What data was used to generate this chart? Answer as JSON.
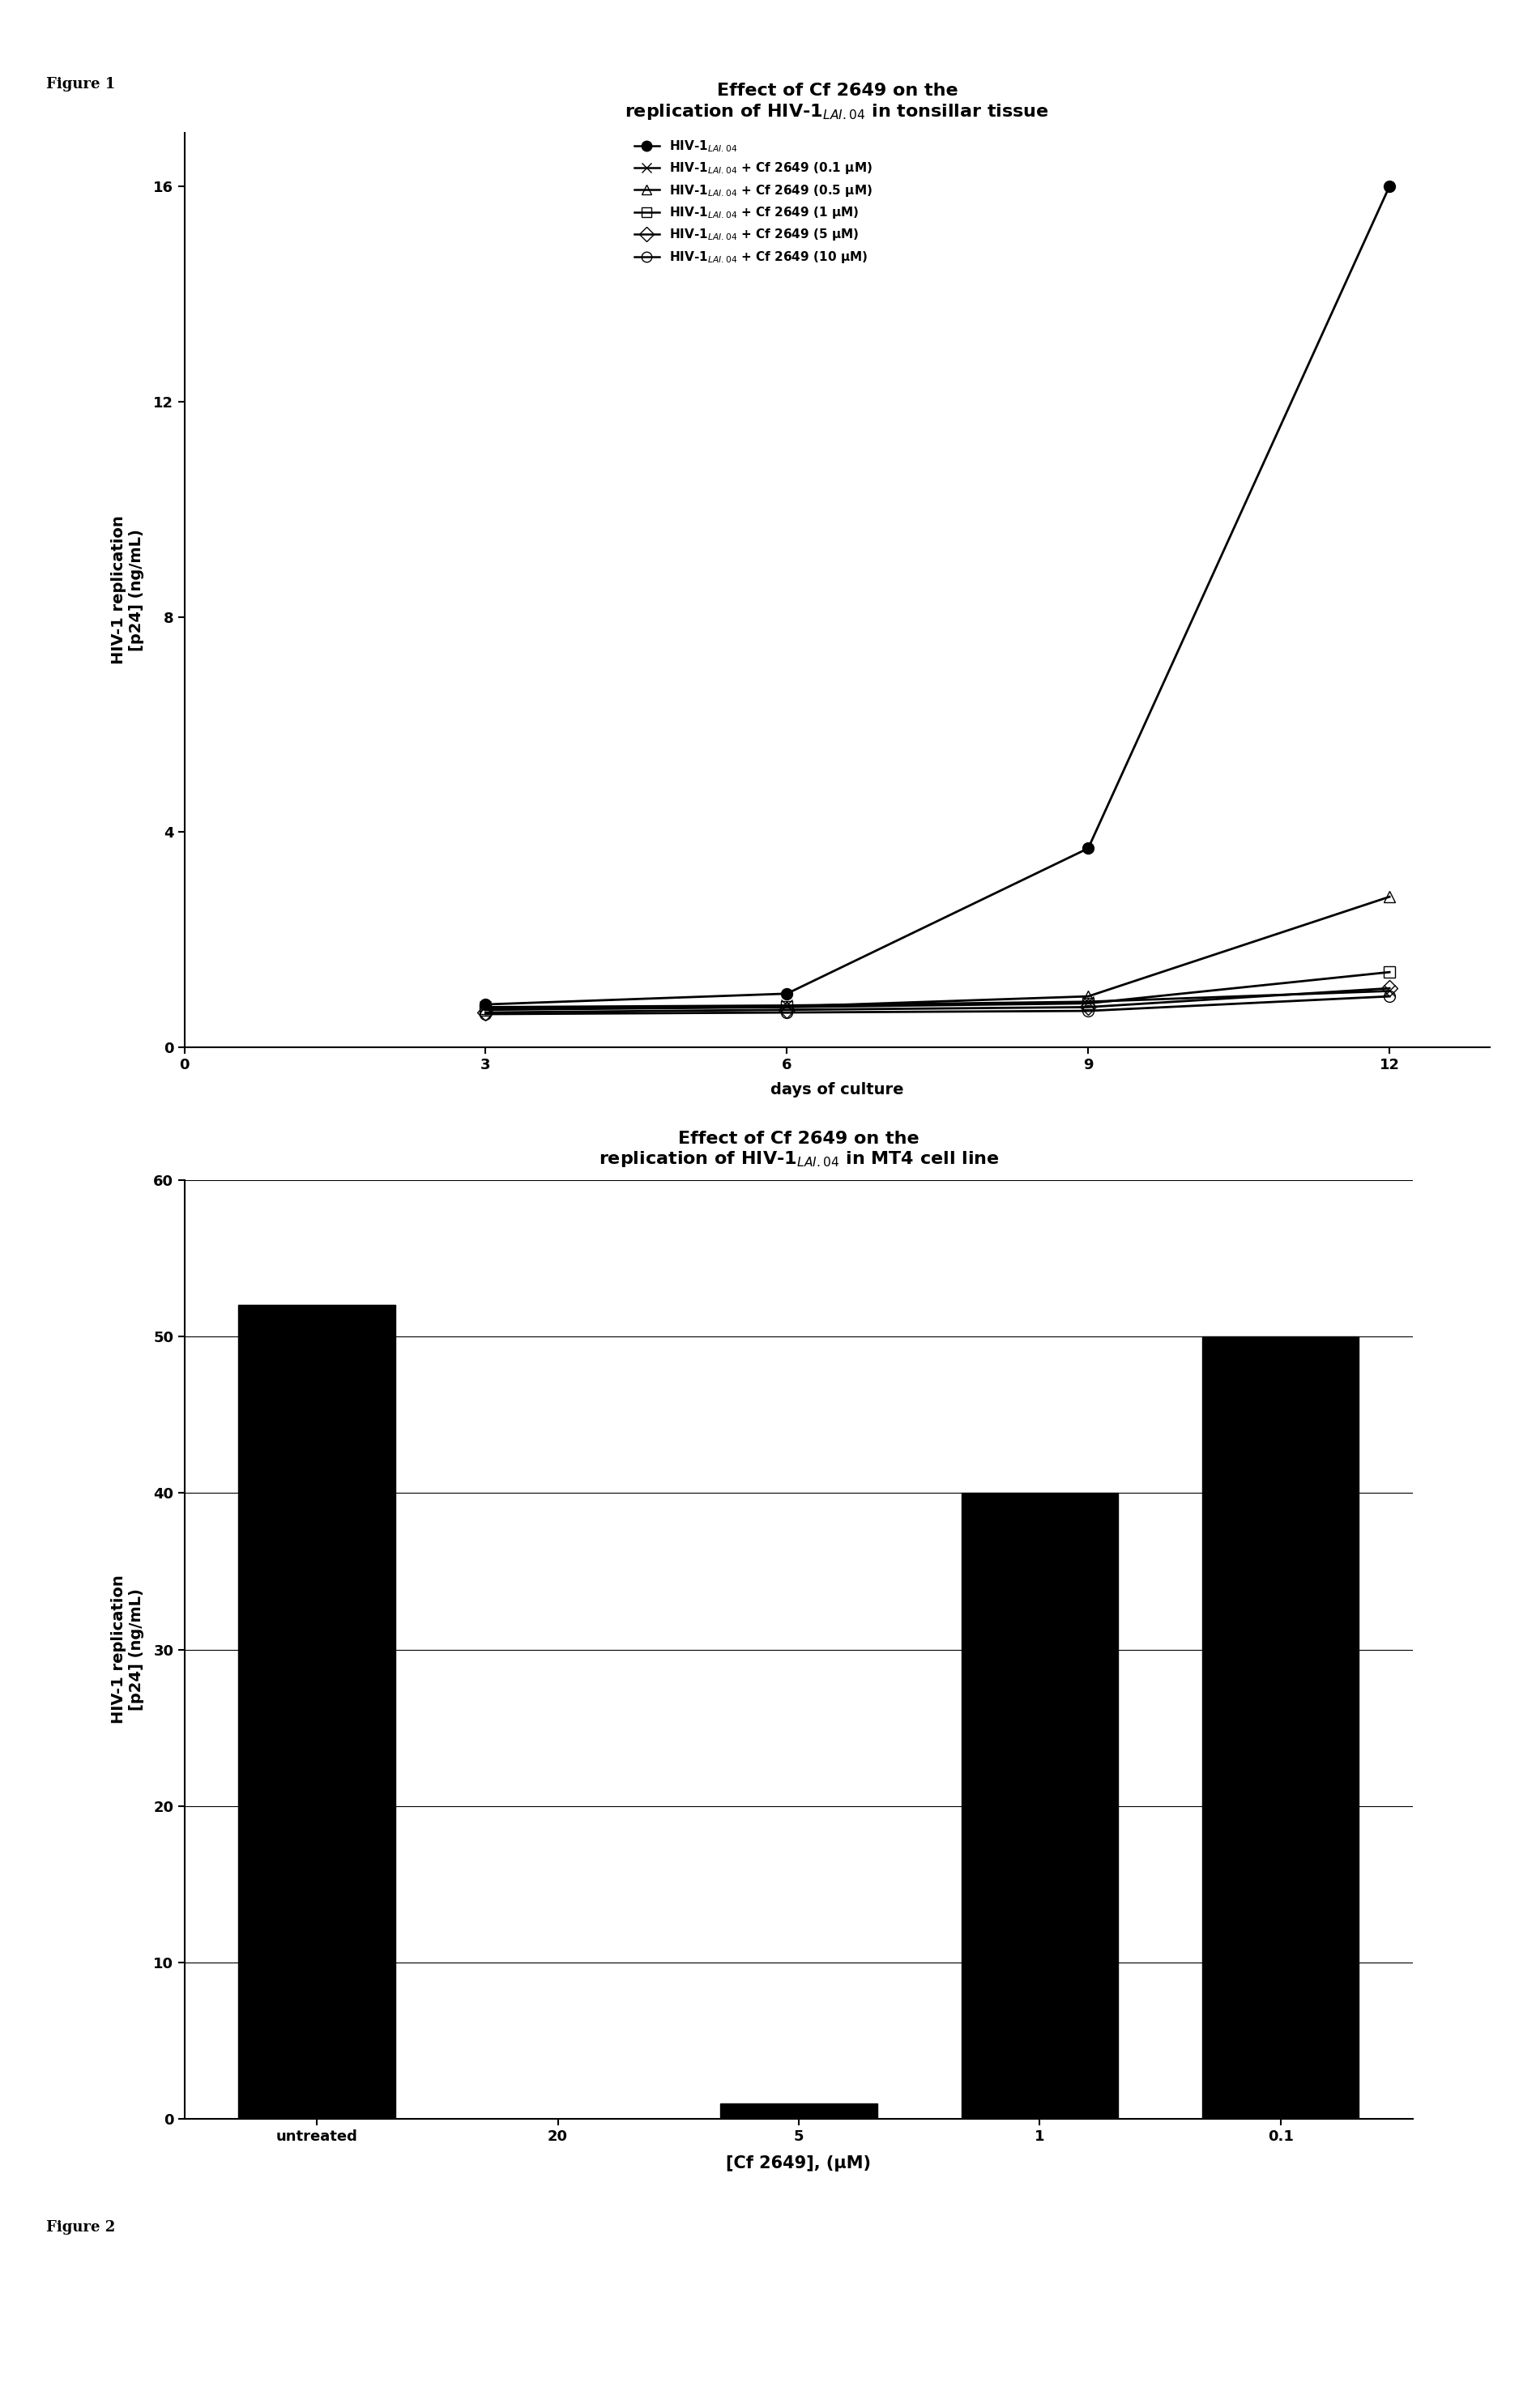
{
  "fig1_title_line1": "Effect of Cf 2649 on the",
  "fig1_title_line2": "replication of HIV-1$_{LAI.04}$ in tonsillar tissue",
  "fig1_xlabel": "days of culture",
  "fig1_ylabel": "HIV-1 replication\n[p24] (ng/mL)",
  "fig1_xlim": [
    0,
    13
  ],
  "fig1_ylim": [
    0,
    17
  ],
  "fig1_xticks": [
    0,
    3,
    6,
    9,
    12
  ],
  "fig1_yticks": [
    0,
    4,
    8,
    12,
    16
  ],
  "fig1_days": [
    3,
    6,
    9,
    12
  ],
  "fig1_series": [
    {
      "label": "HIV-1$_{LAI.04}$",
      "values": [
        0.8,
        1.0,
        3.7,
        16.0
      ],
      "marker": "o",
      "fillstyle": "full",
      "markersize": 10,
      "linewidth": 2.0
    },
    {
      "label": "HIV-1$_{LAI.04}$ + Cf 2649 (0.1 μM)",
      "values": [
        0.75,
        0.78,
        0.85,
        1.05
      ],
      "marker": "x",
      "fillstyle": "full",
      "markersize": 10,
      "linewidth": 2.0
    },
    {
      "label": "HIV-1$_{LAI.04}$ + Cf 2649 (0.5 μM)",
      "values": [
        0.72,
        0.76,
        0.95,
        2.8
      ],
      "marker": "^",
      "fillstyle": "none",
      "markersize": 10,
      "linewidth": 2.0
    },
    {
      "label": "HIV-1$_{LAI.04}$ + Cf 2649 (1 μM)",
      "values": [
        0.7,
        0.75,
        0.82,
        1.4
      ],
      "marker": "s",
      "fillstyle": "none",
      "markersize": 10,
      "linewidth": 2.0
    },
    {
      "label": "HIV-1$_{LAI.04}$ + Cf 2649 (5 μM)",
      "values": [
        0.65,
        0.7,
        0.75,
        1.1
      ],
      "marker": "D",
      "fillstyle": "none",
      "markersize": 10,
      "linewidth": 2.0
    },
    {
      "label": "HIV-1$_{LAI.04}$ + Cf 2649 (10 μM)",
      "values": [
        0.62,
        0.65,
        0.68,
        0.95
      ],
      "marker": "o",
      "fillstyle": "none",
      "markersize": 10,
      "linewidth": 2.0
    }
  ],
  "fig2_title_line1": "Effect of Cf 2649 on the",
  "fig2_title_line2": "replication of HIV-1$_{LAI.04}$ in MT4 cell line",
  "fig2_xlabel": "[Cf 2649], (μM)",
  "fig2_ylabel": "HIV-1 replication\n[p24] (ng/mL)",
  "fig2_categories": [
    "untreated",
    "20",
    "5",
    "1",
    "0.1"
  ],
  "fig2_values": [
    52,
    0,
    1,
    40,
    50
  ],
  "fig2_ylim": [
    0,
    60
  ],
  "fig2_yticks": [
    0,
    10,
    20,
    30,
    40,
    50,
    60
  ],
  "bar_color": "#000000",
  "figure1_label": "Figure 1",
  "figure2_label": "Figure 2",
  "background_color": "#ffffff",
  "font_size_title": 16,
  "font_size_axis_label": 14,
  "font_size_tick": 13,
  "font_size_legend": 11,
  "font_size_figure_label": 13
}
